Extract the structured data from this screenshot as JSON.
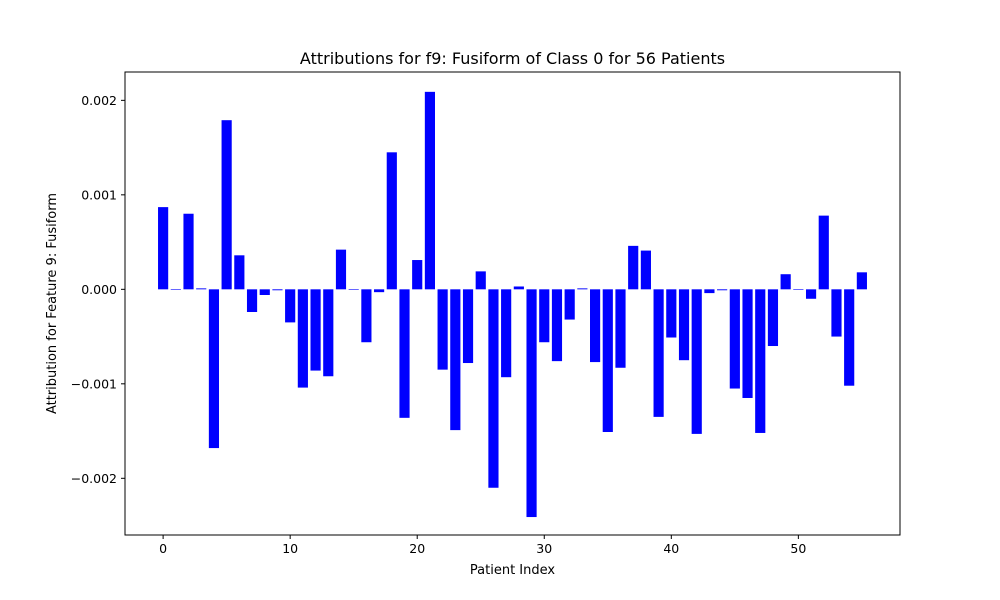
{
  "chart_data": {
    "type": "bar",
    "title": "Attributions for f9: Fusiform of Class 0 for 56 Patients",
    "xlabel": "Patient Index",
    "ylabel": "Attribution for Feature 9: Fusiform",
    "x": [
      0,
      1,
      2,
      3,
      4,
      5,
      6,
      7,
      8,
      9,
      10,
      11,
      12,
      13,
      14,
      15,
      16,
      17,
      18,
      19,
      20,
      21,
      22,
      23,
      24,
      25,
      26,
      27,
      28,
      29,
      30,
      31,
      32,
      33,
      34,
      35,
      36,
      37,
      38,
      39,
      40,
      41,
      42,
      43,
      44,
      45,
      46,
      47,
      48,
      49,
      50,
      51,
      52,
      53,
      54,
      55
    ],
    "values": [
      0.00087,
      0.0,
      0.0008,
      1e-05,
      -0.00168,
      0.00179,
      0.00036,
      -0.00024,
      -6e-05,
      -1e-05,
      -0.00035,
      -0.00104,
      -0.00086,
      -0.00092,
      0.00042,
      0.0,
      -0.00056,
      -3e-05,
      0.00145,
      -0.00136,
      0.00031,
      0.00209,
      -0.00085,
      -0.00149,
      -0.00078,
      0.00019,
      -0.0021,
      -0.00093,
      3e-05,
      -0.00241,
      -0.00056,
      -0.00076,
      -0.00032,
      1e-05,
      -0.00077,
      -0.00151,
      -0.00083,
      0.00046,
      0.00041,
      -0.00135,
      -0.00051,
      -0.00075,
      -0.00153,
      -4e-05,
      -1e-05,
      -0.00105,
      -0.00115,
      -0.00152,
      -0.0006,
      0.00016,
      0.0,
      -0.0001,
      0.00078,
      -0.0005,
      -0.00102,
      0.00018
    ],
    "xlim": [
      -3,
      58
    ],
    "ylim": [
      -0.0026,
      0.0023
    ],
    "xticks": [
      0,
      10,
      20,
      30,
      40,
      50
    ],
    "xtick_labels": [
      "0",
      "10",
      "20",
      "30",
      "40",
      "50"
    ],
    "yticks": [
      -0.002,
      -0.001,
      0.0,
      0.001,
      0.002
    ],
    "ytick_labels": [
      "−0.002",
      "−0.001",
      "0.000",
      "0.001",
      "0.002"
    ],
    "bar_color": "#0000ff",
    "grid": false,
    "legend": "none"
  }
}
